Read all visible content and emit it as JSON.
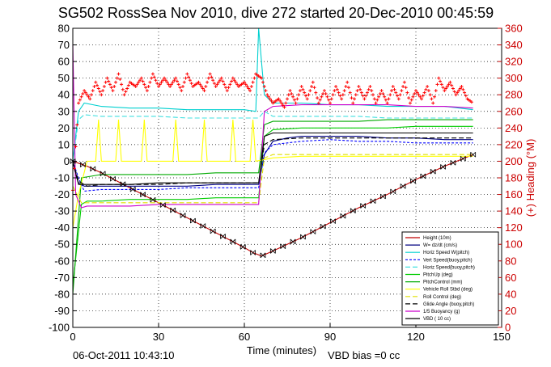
{
  "chart_data": {
    "type": "line",
    "title": "SG502 RossSea Nov 2010, dive 272 started 20-Dec-2010 00:45:59",
    "xlabel": "Time (minutes)",
    "ylabel_right": "(+) Heading (°M)",
    "footer_left": "06-Oct-2011 10:43:10",
    "footer_right": "VBD bias =0 cc",
    "xlim": [
      0,
      150
    ],
    "ylim": [
      -100,
      80
    ],
    "ylim_right": [
      0,
      360
    ],
    "xticks": [
      "0",
      "30",
      "60",
      "90",
      "120",
      "150"
    ],
    "yticks": [
      "80",
      "70",
      "60",
      "50",
      "40",
      "30",
      "20",
      "10",
      "0",
      "-10",
      "-20",
      "-30",
      "-40",
      "-50",
      "-60",
      "-70",
      "-80",
      "-90",
      "-100"
    ],
    "yticks_right": [
      "360",
      "340",
      "320",
      "300",
      "280",
      "260",
      "240",
      "220",
      "200",
      "180",
      "160",
      "140",
      "120",
      "100",
      "80",
      "60",
      "40",
      "20",
      "0"
    ],
    "grid": true,
    "legend_position": "bottom-right",
    "colors": {
      "height": "#c00000",
      "w": "#000080",
      "horiz_speed_w": "#00d0d0",
      "vert_speed_buoy": "#0000ff",
      "horiz_speed_buoy": "#40e0e0",
      "pitch_up": "#00cc00",
      "pitch_control": "#00aa00",
      "vehicle_roll": "#ffff00",
      "roll_control": "#e0e000",
      "glide_angle": "#000000",
      "buoyancy": "#cc00cc",
      "vbd": "#000000",
      "heading": "#ff0000"
    },
    "legend": [
      "Height (10m)",
      "W= dz/dt (cm/s)",
      "Horiz Speed W(pitch)",
      "Vert Speed(buoy,pitch)",
      "Horiz Speed(buoy,pitch)",
      "PitchUp (deg)",
      "PitchControl (mm)",
      "Vehicle Roll Stbd (deg)",
      "Roll Control (deg)",
      "Glide Angle (buoy,pitch)",
      "1/5 Buoyancy (g)",
      "VBD ( 10 cc)"
    ],
    "series": [
      {
        "name": "Height (10m)",
        "x": [
          0,
          5,
          10,
          20,
          30,
          40,
          50,
          60,
          63,
          66,
          70,
          80,
          90,
          100,
          110,
          120,
          130,
          140
        ],
        "y": [
          0,
          -3,
          -7,
          -16,
          -25,
          -34,
          -43,
          -52,
          -55,
          -57,
          -54,
          -46,
          -37,
          -28,
          -20,
          -11,
          -3,
          4
        ]
      },
      {
        "name": "W= dz/dt (cm/s)",
        "x": [
          0,
          1,
          2,
          4,
          10,
          20,
          30,
          40,
          50,
          60,
          65,
          67,
          70,
          75,
          80,
          90,
          100,
          110,
          120,
          130,
          140
        ],
        "y": [
          0,
          -8,
          -13,
          -15,
          -15,
          -15,
          -15,
          -15,
          -14,
          -14,
          -14,
          4,
          12,
          14,
          15,
          15,
          15,
          14,
          14,
          13,
          13
        ]
      },
      {
        "name": "Horiz Speed W(pitch)",
        "x": [
          0,
          2,
          4,
          10,
          20,
          30,
          40,
          50,
          60,
          64,
          65,
          66,
          67,
          70,
          80,
          90,
          100,
          110,
          120,
          130,
          140
        ],
        "y": [
          0,
          30,
          35,
          33,
          32,
          32,
          31,
          31,
          31,
          30,
          80,
          60,
          40,
          35,
          35,
          34,
          34,
          33,
          33,
          33,
          31
        ]
      },
      {
        "name": "Vert Speed(buoy,pitch)",
        "x": [
          0,
          2,
          4,
          10,
          20,
          30,
          40,
          50,
          60,
          65,
          67,
          70,
          80,
          90,
          100,
          110,
          120,
          130,
          140
        ],
        "y": [
          0,
          -10,
          -18,
          -17,
          -17,
          -17,
          -16,
          -16,
          -16,
          -16,
          5,
          10,
          12,
          13,
          12,
          12,
          11,
          11,
          11
        ]
      },
      {
        "name": "Horiz Speed(buoy,pitch)",
        "x": [
          0,
          2,
          4,
          10,
          20,
          30,
          40,
          50,
          60,
          65,
          67,
          70,
          80,
          90,
          100,
          110,
          120,
          130,
          140
        ],
        "y": [
          0,
          25,
          28,
          27,
          27,
          27,
          26,
          26,
          26,
          26,
          30,
          27,
          27,
          27,
          27,
          26,
          26,
          26,
          26
        ]
      },
      {
        "name": "PitchUp (deg)",
        "x": [
          0,
          3,
          5,
          10,
          20,
          30,
          40,
          50,
          60,
          65,
          67,
          70,
          80,
          90,
          100,
          110,
          120,
          130,
          140
        ],
        "y": [
          -75,
          -26,
          -24,
          -24,
          -23,
          -23,
          -23,
          -22,
          -22,
          -22,
          15,
          19,
          20,
          20,
          20,
          20,
          21,
          21,
          21
        ]
      },
      {
        "name": "PitchControl (mm)",
        "x": [
          0,
          3,
          10,
          20,
          30,
          40,
          50,
          60,
          65,
          67,
          70,
          80,
          90,
          100,
          110,
          120,
          130,
          140
        ],
        "y": [
          -80,
          -10,
          -8,
          -8,
          -8,
          -8,
          -7,
          -7,
          -7,
          22,
          24,
          24,
          24,
          24,
          25,
          25,
          25,
          25
        ]
      },
      {
        "name": "Vehicle Roll Stbd (deg)",
        "x": [
          0,
          2,
          5,
          8,
          9,
          10,
          15,
          16,
          17,
          24,
          25,
          26,
          35,
          36,
          37,
          45,
          46,
          47,
          55,
          56,
          57,
          62,
          63,
          64,
          70,
          80,
          90,
          100,
          110,
          120,
          130,
          140
        ],
        "y": [
          -40,
          -20,
          0,
          0,
          25,
          0,
          0,
          25,
          0,
          0,
          25,
          0,
          0,
          25,
          0,
          0,
          25,
          0,
          0,
          25,
          0,
          0,
          25,
          0,
          2,
          3,
          3,
          3,
          3,
          3,
          3,
          3
        ]
      },
      {
        "name": "Roll Control (deg)",
        "x": [
          0,
          3,
          10,
          20,
          30,
          40,
          50,
          60,
          65,
          67,
          70,
          80,
          90,
          100,
          110,
          120,
          130,
          140
        ],
        "y": [
          -15,
          -25,
          -25,
          -25,
          -25,
          -25,
          -25,
          -25,
          -25,
          2,
          4,
          4,
          4,
          4,
          4,
          4,
          4,
          4
        ]
      },
      {
        "name": "Glide Angle (buoy,pitch)",
        "x": [
          0,
          2,
          5,
          10,
          20,
          30,
          40,
          50,
          60,
          65,
          67,
          70,
          80,
          90,
          100,
          110,
          120,
          130,
          140
        ],
        "y": [
          0,
          -12,
          -15,
          -14,
          -14,
          -14,
          -13,
          -13,
          -13,
          -13,
          10,
          13,
          14,
          14,
          14,
          14,
          14,
          14,
          14
        ]
      },
      {
        "name": "1/5 Buoyancy (g)",
        "x": [
          0,
          1,
          3,
          5,
          10,
          20,
          30,
          40,
          50,
          60,
          65,
          67,
          70,
          80,
          90,
          100,
          110,
          120,
          130,
          140
        ],
        "y": [
          70,
          -20,
          -28,
          -27,
          -27,
          -27,
          -26,
          -26,
          -26,
          -26,
          -26,
          30,
          33,
          34,
          34,
          34,
          34,
          33,
          33,
          32
        ]
      },
      {
        "name": "VBD ( 10 cc)",
        "x": [
          0,
          2,
          10,
          20,
          30,
          40,
          50,
          60,
          65,
          67,
          70,
          80,
          90,
          100,
          110,
          120,
          130,
          140
        ],
        "y": [
          0,
          -14,
          -14,
          -14,
          -13,
          -13,
          -13,
          -13,
          -13,
          15,
          17,
          17,
          17,
          17,
          17,
          17,
          17,
          17
        ]
      }
    ],
    "heading_series": {
      "x": [
        0,
        2,
        4,
        6,
        8,
        10,
        12,
        14,
        16,
        18,
        20,
        22,
        24,
        26,
        28,
        30,
        32,
        34,
        36,
        38,
        40,
        42,
        44,
        46,
        48,
        50,
        52,
        54,
        56,
        58,
        60,
        62,
        64,
        66,
        68,
        70,
        72,
        74,
        76,
        78,
        80,
        82,
        84,
        86,
        88,
        90,
        92,
        94,
        96,
        98,
        100,
        102,
        104,
        106,
        108,
        110,
        112,
        114,
        116,
        118,
        120,
        122,
        124,
        126,
        128,
        130,
        132,
        134,
        136,
        138,
        140
      ],
      "y": [
        165,
        270,
        285,
        275,
        295,
        280,
        300,
        285,
        305,
        280,
        295,
        290,
        300,
        285,
        305,
        290,
        300,
        290,
        300,
        285,
        305,
        290,
        295,
        285,
        305,
        290,
        300,
        285,
        300,
        290,
        295,
        285,
        305,
        300,
        280,
        270,
        275,
        265,
        285,
        270,
        290,
        275,
        295,
        270,
        285,
        270,
        290,
        275,
        295,
        270,
        290,
        275,
        290,
        270,
        285,
        270,
        290,
        275,
        295,
        270,
        285,
        275,
        290,
        270,
        300,
        285,
        295,
        280,
        290,
        275,
        270
      ]
    }
  }
}
